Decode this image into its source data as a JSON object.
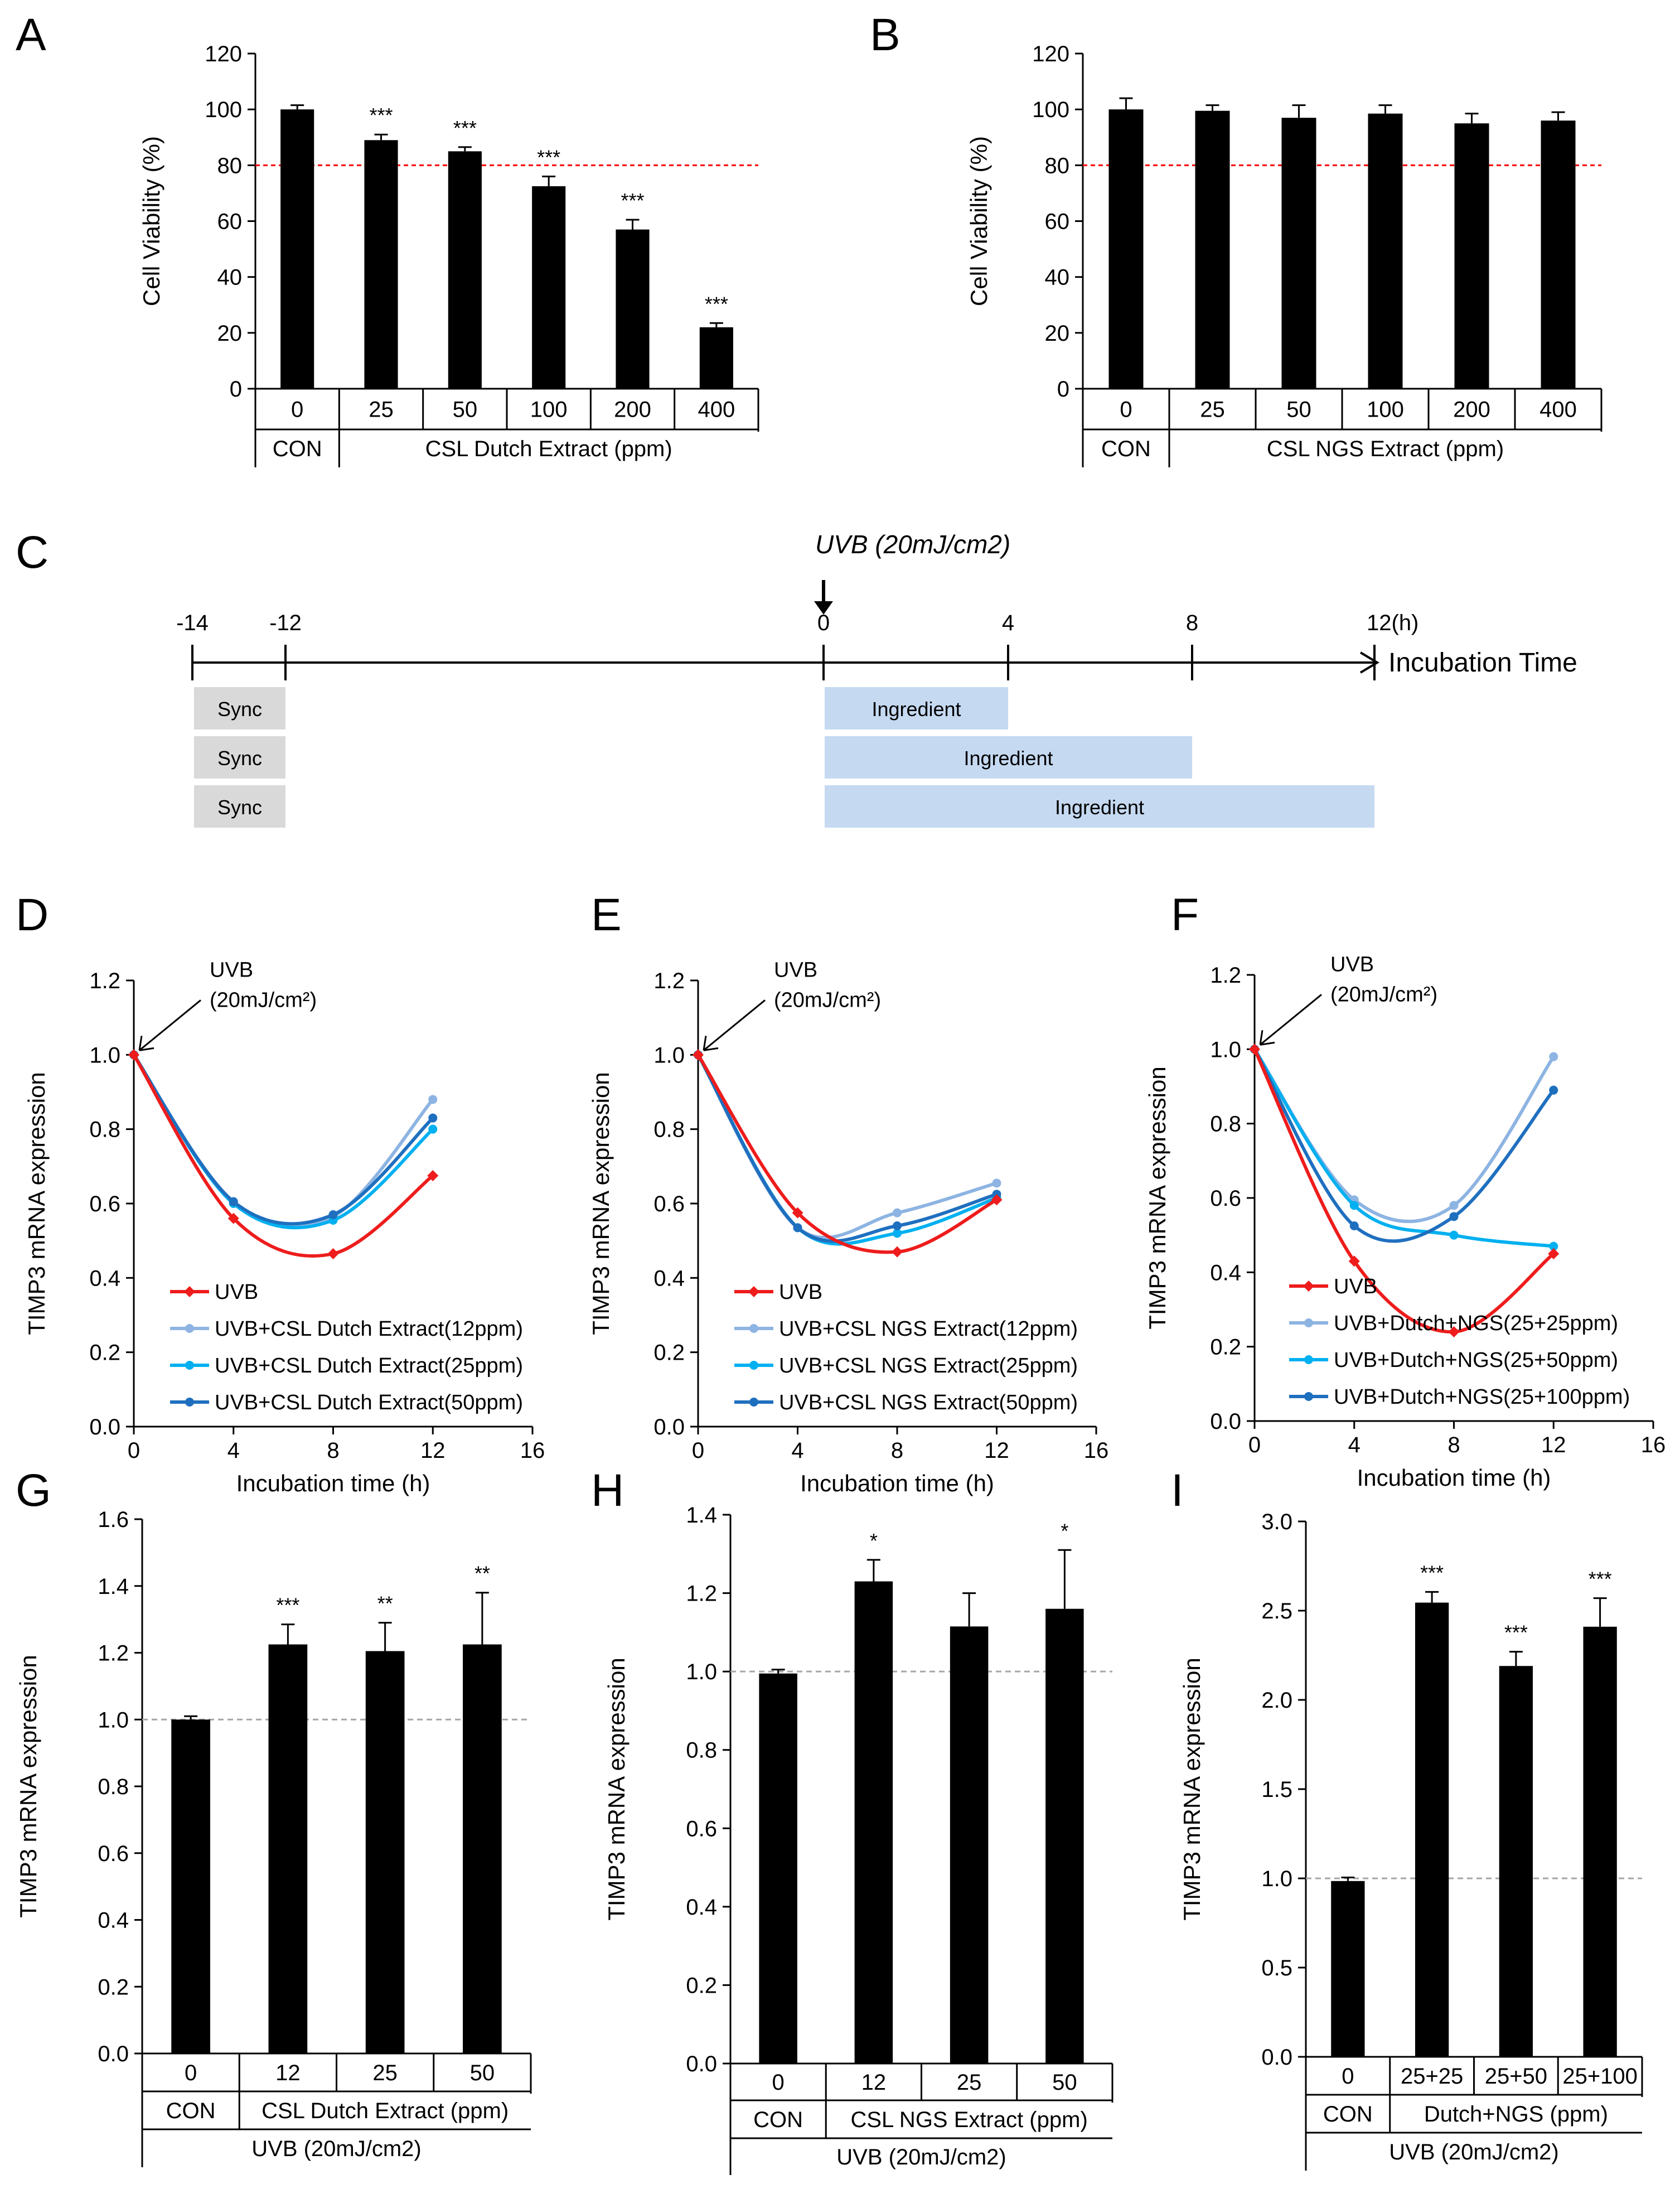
{
  "colors": {
    "uvb": "#ee1c1c",
    "dose_low": "#8db4e2",
    "dose_mid": "#00b0f0",
    "dose_high": "#1f6fbf",
    "bar": "#000000",
    "threshold_line": "#ff0000",
    "reference_line": "#a6a6a6",
    "sync_box": "#d9d9d9",
    "ingredient_box": "#c5d9f1"
  },
  "chart_data": [
    {
      "panel": "A",
      "type": "bar",
      "ylabel": "Cell Viability (%)",
      "ylim": [
        0,
        120
      ],
      "yticks": [
        "0",
        "20",
        "40",
        "60",
        "80",
        "100",
        "120"
      ],
      "categories": [
        "0",
        "25",
        "50",
        "100",
        "200",
        "400"
      ],
      "values": [
        100,
        89,
        85,
        72.5,
        57,
        22
      ],
      "errors": [
        1.5,
        2,
        1.5,
        3.5,
        3.5,
        1.5
      ],
      "significance": [
        "",
        "***",
        "***",
        "***",
        "***",
        "***"
      ],
      "threshold": 80,
      "group_labels": [
        {
          "label": "CON",
          "span": [
            0,
            0
          ]
        },
        {
          "label": "CSL Dutch Extract (ppm)",
          "span": [
            1,
            5
          ]
        }
      ]
    },
    {
      "panel": "B",
      "type": "bar",
      "ylabel": "Cell Viability (%)",
      "ylim": [
        0,
        120
      ],
      "yticks": [
        "0",
        "20",
        "40",
        "60",
        "80",
        "100",
        "120"
      ],
      "categories": [
        "0",
        "25",
        "50",
        "100",
        "200",
        "400"
      ],
      "values": [
        100,
        99.5,
        97,
        98.5,
        95,
        96
      ],
      "errors": [
        4,
        2,
        4.5,
        3,
        3.5,
        3
      ],
      "significance": [
        "",
        "",
        "",
        "",
        "",
        ""
      ],
      "threshold": 80,
      "group_labels": [
        {
          "label": "CON",
          "span": [
            0,
            0
          ]
        },
        {
          "label": "CSL NGS Extract (ppm)",
          "span": [
            1,
            5
          ]
        }
      ]
    },
    {
      "panel": "D",
      "type": "line",
      "xlabel": "Incubation time (h)",
      "ylabel": "TIMP3 mRNA expression",
      "xlim": [
        0,
        16
      ],
      "ylim": [
        0,
        1.2
      ],
      "xticks": [
        "0",
        "4",
        "8",
        "12",
        "16"
      ],
      "yticks": [
        "0.0",
        "0.2",
        "0.4",
        "0.6",
        "0.8",
        "1.0",
        "1.2"
      ],
      "x": [
        0,
        4,
        8,
        12
      ],
      "annotation": [
        "UVB",
        "(20mJ/cm²)"
      ],
      "series": [
        {
          "name": "UVB",
          "values": [
            1.0,
            0.56,
            0.465,
            0.675
          ],
          "color_key": "uvb"
        },
        {
          "name": "UVB+CSL Dutch Extract(12ppm)",
          "values": [
            1.0,
            0.605,
            0.565,
            0.88
          ],
          "color_key": "dose_low"
        },
        {
          "name": "UVB+CSL Dutch Extract(25ppm)",
          "values": [
            1.0,
            0.6,
            0.555,
            0.8
          ],
          "color_key": "dose_mid"
        },
        {
          "name": "UVB+CSL Dutch Extract(50ppm)",
          "values": [
            1.0,
            0.605,
            0.57,
            0.83
          ],
          "color_key": "dose_high"
        }
      ]
    },
    {
      "panel": "E",
      "type": "line",
      "xlabel": "Incubation time (h)",
      "ylabel": "TIMP3 mRNA expression",
      "xlim": [
        0,
        16
      ],
      "ylim": [
        0,
        1.2
      ],
      "xticks": [
        "0",
        "4",
        "8",
        "12",
        "16"
      ],
      "yticks": [
        "0.0",
        "0.2",
        "0.4",
        "0.6",
        "0.8",
        "1.0",
        "1.2"
      ],
      "x": [
        0,
        4,
        8,
        12
      ],
      "annotation": [
        "UVB",
        "(20mJ/cm²)"
      ],
      "series": [
        {
          "name": "UVB",
          "values": [
            1.0,
            0.575,
            0.47,
            0.61
          ],
          "color_key": "uvb"
        },
        {
          "name": "UVB+CSL NGS Extract(12ppm)",
          "values": [
            1.0,
            0.535,
            0.575,
            0.655
          ],
          "color_key": "dose_low"
        },
        {
          "name": "UVB+CSL NGS Extract(25ppm)",
          "values": [
            1.0,
            0.535,
            0.52,
            0.615
          ],
          "color_key": "dose_mid"
        },
        {
          "name": "UVB+CSL NGS Extract(50ppm)",
          "values": [
            1.0,
            0.535,
            0.54,
            0.625
          ],
          "color_key": "dose_high"
        }
      ]
    },
    {
      "panel": "F",
      "type": "line",
      "xlabel": "Incubation time (h)",
      "ylabel": "TIMP3 mRNA expression",
      "xlim": [
        0,
        16
      ],
      "ylim": [
        0,
        1.2
      ],
      "xticks": [
        "0",
        "4",
        "8",
        "12",
        "16"
      ],
      "yticks": [
        "0.0",
        "0.2",
        "0.4",
        "0.6",
        "0.8",
        "1.0",
        "1.2"
      ],
      "x": [
        0,
        4,
        8,
        12
      ],
      "annotation": [
        "UVB",
        "(20mJ/cm²)"
      ],
      "series": [
        {
          "name": "UVB",
          "values": [
            1.0,
            0.43,
            0.24,
            0.45
          ],
          "color_key": "uvb"
        },
        {
          "name": "UVB+Dutch+NGS(25+25ppm)",
          "values": [
            1.0,
            0.595,
            0.58,
            0.98
          ],
          "color_key": "dose_low"
        },
        {
          "name": "UVB+Dutch+NGS(25+50ppm)",
          "values": [
            1.0,
            0.58,
            0.5,
            0.47
          ],
          "color_key": "dose_mid"
        },
        {
          "name": "UVB+Dutch+NGS(25+100ppm)",
          "values": [
            1.0,
            0.525,
            0.55,
            0.89
          ],
          "color_key": "dose_high"
        }
      ]
    },
    {
      "panel": "G",
      "type": "bar",
      "ylabel": "TIMP3 mRNA expression",
      "ylim": [
        0,
        1.6
      ],
      "yticks": [
        "0.0",
        "0.2",
        "0.4",
        "0.6",
        "0.8",
        "1.0",
        "1.2",
        "1.4",
        "1.6"
      ],
      "categories": [
        "0",
        "12",
        "25",
        "50"
      ],
      "values": [
        1.0,
        1.225,
        1.205,
        1.225
      ],
      "errors": [
        0.01,
        0.06,
        0.085,
        0.155
      ],
      "significance": [
        "",
        "***",
        "**",
        "**"
      ],
      "reference": 1.0,
      "group_labels": [
        {
          "label": "CON",
          "span": [
            0,
            0
          ]
        },
        {
          "label": "CSL Dutch Extract (ppm)",
          "span": [
            1,
            3
          ]
        }
      ],
      "bottom_label": "UVB (20mJ/cm2)"
    },
    {
      "panel": "H",
      "type": "bar",
      "ylabel": "TIMP3 mRNA expression",
      "ylim": [
        0,
        1.4
      ],
      "yticks": [
        "0.0",
        "0.2",
        "0.4",
        "0.6",
        "0.8",
        "1.0",
        "1.2",
        "1.4"
      ],
      "categories": [
        "0",
        "12",
        "25",
        "50"
      ],
      "values": [
        0.995,
        1.23,
        1.115,
        1.16
      ],
      "errors": [
        0.01,
        0.055,
        0.085,
        0.15
      ],
      "significance": [
        "",
        "*",
        "",
        "*"
      ],
      "reference": 1.0,
      "group_labels": [
        {
          "label": "CON",
          "span": [
            0,
            0
          ]
        },
        {
          "label": "CSL NGS Extract (ppm)",
          "span": [
            1,
            3
          ]
        }
      ],
      "bottom_label": "UVB (20mJ/cm2)"
    },
    {
      "panel": "I",
      "type": "bar",
      "ylabel": "TIMP3 mRNA expression",
      "ylim": [
        0,
        3.0
      ],
      "yticks": [
        "0.0",
        "0.5",
        "1.0",
        "1.5",
        "2.0",
        "2.5",
        "3.0"
      ],
      "categories": [
        "0",
        "25+25",
        "25+50",
        "25+100"
      ],
      "values": [
        0.985,
        2.545,
        2.19,
        2.41
      ],
      "errors": [
        0.02,
        0.06,
        0.08,
        0.16
      ],
      "significance": [
        "",
        "***",
        "***",
        "***"
      ],
      "reference": 1.0,
      "group_labels": [
        {
          "label": "CON",
          "span": [
            0,
            0
          ]
        },
        {
          "label": "Dutch+NGS (ppm)",
          "span": [
            1,
            3
          ]
        }
      ],
      "bottom_label": "UVB (20mJ/cm2)"
    }
  ],
  "timeline": {
    "panel": "C",
    "uvb_label": "UVB (20mJ/cm2)",
    "axis_label": "Incubation Time",
    "ticks": [
      {
        "label": "-14",
        "t": -14
      },
      {
        "label": "-12",
        "t": -12
      },
      {
        "label": "0",
        "t": 0
      },
      {
        "label": "4",
        "t": 4
      },
      {
        "label": "8",
        "t": 8
      },
      {
        "label": "12(h)",
        "t": 12
      }
    ],
    "rows": [
      {
        "sync": "Sync",
        "ingredient": "Ingredient",
        "end": 4
      },
      {
        "sync": "Sync",
        "ingredient": "Ingredient",
        "end": 8
      },
      {
        "sync": "Sync",
        "ingredient": "Ingredient",
        "end": 12
      }
    ]
  }
}
